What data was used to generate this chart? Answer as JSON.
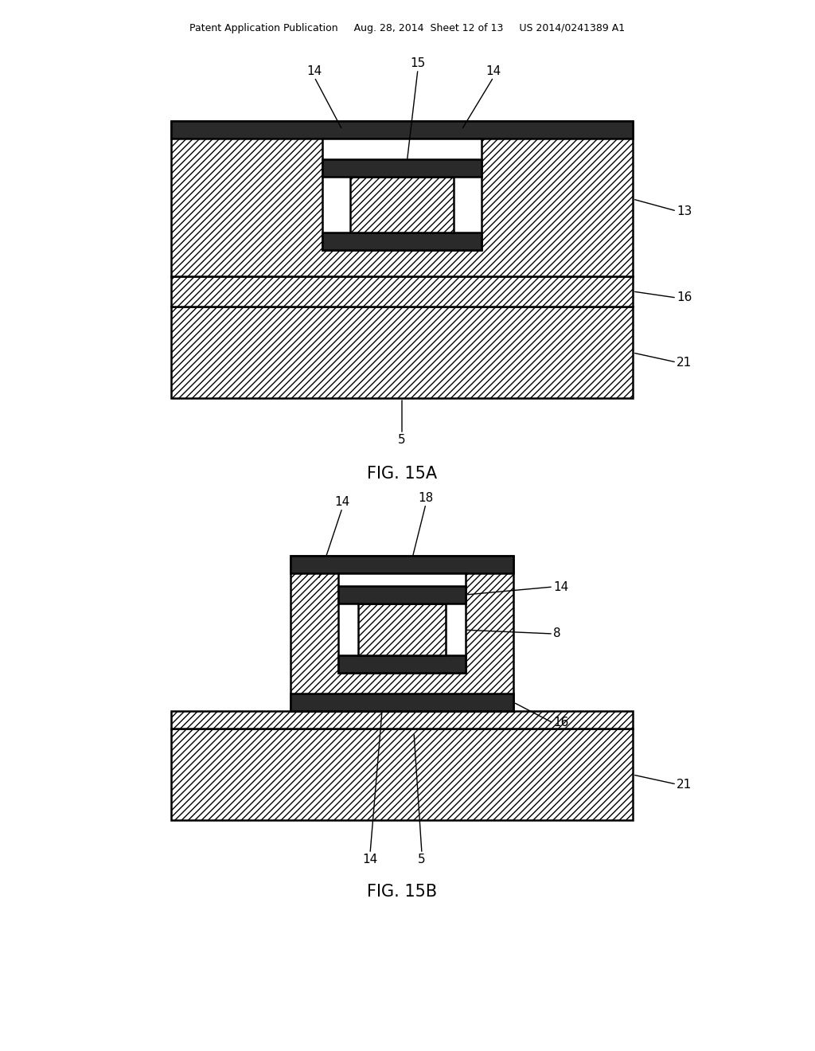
{
  "bg_color": "#ffffff",
  "fig_width": 10.24,
  "fig_height": 13.2,
  "header_text": "Patent Application Publication     Aug. 28, 2014  Sheet 12 of 13     US 2014/0241389 A1",
  "fig15a_label": "FIG. 15A",
  "fig15b_label": "FIG. 15B",
  "header_fontsize": 9,
  "label_fontsize": 11,
  "caption_fontsize": 15
}
